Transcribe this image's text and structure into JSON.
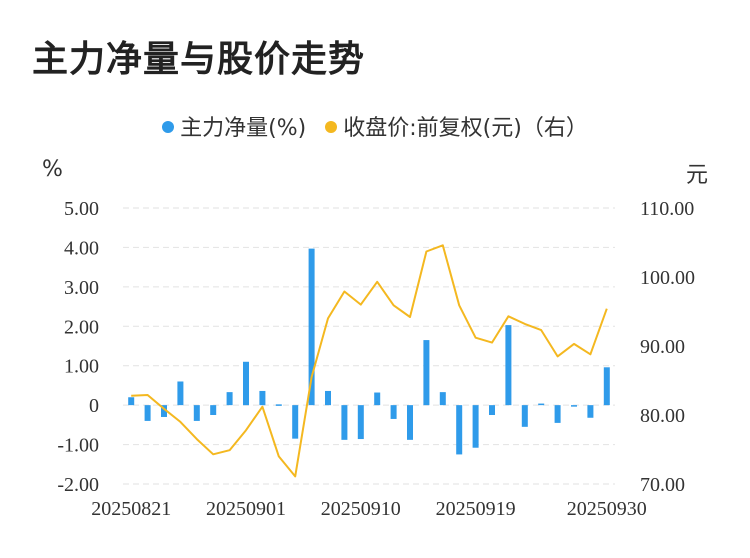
{
  "title": "主力净量与股价走势",
  "colors": {
    "bar": "#2f9bea",
    "line": "#f4b820",
    "grid": "#e2e2e2"
  },
  "chart_data": {
    "type": "bar+line",
    "title": "主力净量与股价走势",
    "left_unit": "%",
    "right_unit": "元",
    "legend": [
      {
        "name": "主力净量(%)",
        "color": "#2f9bea"
      },
      {
        "name": "收盘价:前复权(元)（右）",
        "color": "#f4b820"
      }
    ],
    "x_ticks": [
      "20250821",
      "20250901",
      "20250910",
      "20250919",
      "20250930"
    ],
    "left_ticks": [
      "5.00",
      "4.00",
      "3.00",
      "2.00",
      "1.00",
      "0",
      "-1.00",
      "-2.00"
    ],
    "right_ticks": [
      "110.00",
      "100.00",
      "90.00",
      "80.00",
      "70.00"
    ],
    "ylim_left": [
      -2,
      5
    ],
    "ylim_right": [
      70,
      110
    ],
    "bars_pct": [
      0.2,
      -0.4,
      -0.3,
      0.6,
      -0.4,
      -0.25,
      0.33,
      1.1,
      0.36,
      0.02,
      -0.85,
      3.97,
      0.36,
      -0.88,
      -0.86,
      0.32,
      -0.35,
      -0.88,
      1.65,
      0.33,
      -1.25,
      -1.08,
      -0.25,
      2.03,
      -0.55,
      0.04,
      -0.45,
      -0.02,
      -0.32,
      0.96
    ],
    "close_price": [
      82.8,
      82.9,
      80.9,
      79.0,
      76.5,
      74.3,
      74.9,
      77.8,
      81.2,
      74.0,
      71.1,
      85.5,
      94.0,
      97.9,
      96.0,
      99.3,
      95.9,
      94.2,
      103.7,
      104.6,
      95.9,
      91.2,
      90.5,
      94.3,
      93.2,
      92.3,
      88.5,
      90.3,
      88.8,
      95.4
    ]
  }
}
